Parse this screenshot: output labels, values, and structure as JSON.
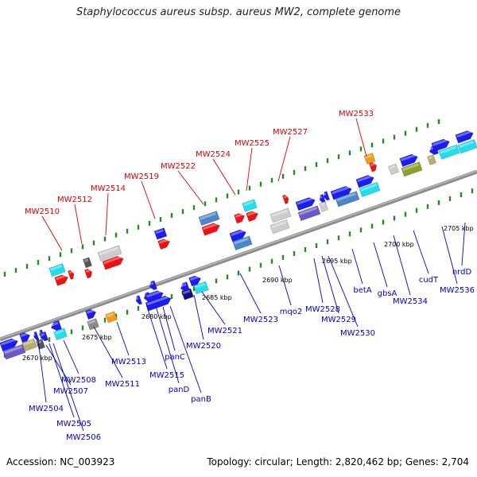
{
  "title": "Staphylococcus aureus subsp. aureus MW2, complete genome",
  "footer": {
    "accession": "Accession: NC_003923",
    "summary": "Topology: circular; Length: 2,820,462 bp; Genes: 2,704"
  },
  "colors": {
    "backbone": "#8c8c8c",
    "tick": "#228b22",
    "upper_label": "#dd0000",
    "lower_label": "#0000cc",
    "scale_text": "#000000"
  },
  "scale_labels": [
    "2670 kbp",
    "2675 kbp",
    "2680 kbp",
    "2685 kbp",
    "2690 kbp",
    "2695 kbp",
    "2700 kbp",
    "2705 kbp"
  ],
  "upper_labels": [
    "MW2510",
    "MW2512",
    "MW2514",
    "MW2519",
    "MW2522",
    "MW2524",
    "MW2525",
    "MW2527",
    "MW2533"
  ],
  "lower_labels": [
    "MW2504",
    "MW2505",
    "MW2506",
    "MW2507",
    "MW2508",
    "MW2511",
    "MW2513",
    "MW2515",
    "panD",
    "panC",
    "panB",
    "MW2520",
    "MW2521",
    "MW2523",
    "mqo2",
    "MW2528",
    "MW2529",
    "MW2530",
    "betA",
    "gbsA",
    "MW2534",
    "cudT",
    "MW2536",
    "nrdD"
  ]
}
